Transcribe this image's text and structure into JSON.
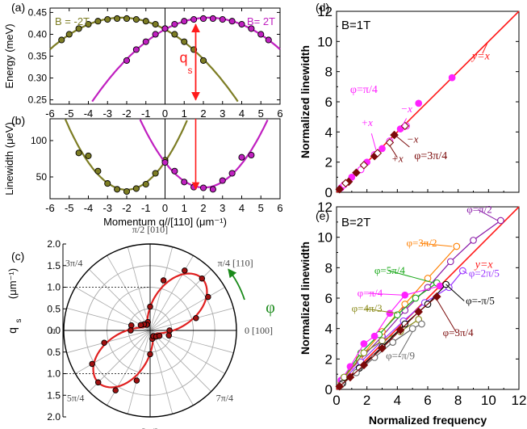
{
  "chart_data": [
    {
      "panel": "(a)",
      "type": "scatter",
      "xlim": [
        -6,
        6
      ],
      "ylim": [
        0.24,
        0.46
      ],
      "xticks": [
        -6,
        -5,
        -4,
        -3,
        -2,
        -1,
        0,
        1,
        2,
        3,
        4,
        5,
        6
      ],
      "yticks": [
        0.25,
        0.3,
        0.35,
        0.4,
        0.45
      ],
      "ytick_labels": [
        "0.25",
        "0.30",
        "0.35",
        "0.40",
        "0.45"
      ],
      "ylabel": "Energy (meV)",
      "annotations": [
        "qs"
      ],
      "series": [
        {
          "name": "B = -2T",
          "color": "#7d7d24",
          "x": [
            -5.4,
            -5,
            -4.5,
            -4,
            -3.5,
            -3,
            -2.5,
            -2,
            -1.5,
            -1,
            -0.5,
            0,
            0.5,
            1.0,
            1.5,
            2.0
          ],
          "y": [
            0.387,
            0.4,
            0.413,
            0.423,
            0.43,
            0.434,
            0.436,
            0.436,
            0.434,
            0.43,
            0.423,
            0.413,
            0.4,
            0.383,
            0.365,
            0.34
          ]
        },
        {
          "name": "B= 2T",
          "color": "#c020c0",
          "x": [
            -2.0,
            -1.5,
            -1.0,
            -0.5,
            0,
            0.5,
            1.0,
            1.5,
            2.0,
            2.5,
            3.0,
            3.5,
            4.0,
            4.5,
            5.0,
            5.4
          ],
          "y": [
            0.34,
            0.365,
            0.383,
            0.4,
            0.413,
            0.423,
            0.43,
            0.434,
            0.436,
            0.436,
            0.434,
            0.43,
            0.423,
            0.413,
            0.4,
            0.387
          ]
        }
      ]
    },
    {
      "panel": "(b)",
      "type": "scatter",
      "xlim": [
        -6,
        6
      ],
      "ylim": [
        20,
        130
      ],
      "xticks": [
        -6,
        -5,
        -4,
        -3,
        -2,
        -1,
        0,
        1,
        2,
        3,
        4,
        5,
        6
      ],
      "yticks": [
        50,
        100
      ],
      "xlabel": "Momentum q//[110] (μm⁻¹)",
      "ylabel": "Linewidth (μeV)",
      "series": [
        {
          "name": "B = -2T",
          "color": "#7d7d24",
          "x": [
            -4.5,
            -4,
            -3.5,
            -3,
            -2.5,
            -2,
            -1.5,
            -1,
            -0.5,
            0
          ],
          "y": [
            83,
            79,
            58,
            41,
            33,
            30,
            34,
            40,
            55,
            73
          ]
        },
        {
          "name": "B= 2T",
          "color": "#c020c0",
          "x": [
            0,
            0.5,
            1.0,
            1.5,
            2.0,
            2.5,
            3.0,
            3.5,
            4.0,
            4.5
          ],
          "y": [
            70,
            58,
            43,
            36,
            35,
            33,
            45,
            55,
            77,
            80
          ]
        }
      ]
    },
    {
      "panel": "(c)",
      "type": "polar",
      "rlim": [
        0,
        2.0
      ],
      "r_tick_labels": [
        "2.0",
        "1.5",
        "1.0",
        "0.5",
        "0.0"
      ],
      "angle_labels": [
        "π/2 [010]",
        "π/4 [110]",
        "0 [100]",
        "7π/4",
        "3π/2",
        "5π/4",
        "π",
        "3π/4"
      ],
      "ylabel": "qs (μm⁻¹)",
      "arrow_label": "φ",
      "series": [
        {
          "name": "data",
          "color": "#a01010",
          "phi_deg": [
            0,
            15,
            30,
            45,
            60,
            75,
            90,
            105,
            120,
            135,
            150,
            165,
            180,
            195,
            210,
            225,
            240,
            255,
            270,
            285,
            300,
            315,
            330,
            345
          ],
          "r": [
            0.45,
            1.1,
            1.55,
            1.7,
            1.6,
            1.2,
            0.55,
            0.2,
            0.15,
            0.2,
            0.25,
            0.45,
            0.45,
            1.1,
            1.55,
            1.7,
            1.6,
            1.2,
            0.55,
            0.2,
            0.15,
            0.2,
            0.25,
            0.45
          ]
        }
      ]
    },
    {
      "panel": "(d)",
      "type": "scatter",
      "xlim": [
        0,
        12
      ],
      "ylim": [
        0,
        12
      ],
      "yticks": [
        0,
        2,
        4,
        6,
        8,
        10,
        12
      ],
      "ylabel": "Normalized linewidth",
      "tag": "B=1T",
      "line_label": "y=x",
      "labels": [
        "φ=π/4",
        "−x",
        "+x",
        "−x",
        "+x",
        "φ=3π/4"
      ],
      "series": [
        {
          "name": "φ=π/4 −x",
          "color": "#ff22ff",
          "filled": true,
          "x": [
            0.3,
            1.0,
            2.0,
            3.0,
            4.2,
            5.4,
            7.6
          ],
          "y": [
            0.3,
            1.0,
            2.0,
            2.9,
            4.2,
            5.9,
            7.6
          ]
        },
        {
          "name": "φ=π/4 +x",
          "color": "#ff22ff",
          "filled": false,
          "x": [
            0.5,
            1.6,
            2.5,
            3.5,
            4.6
          ],
          "y": [
            0.5,
            1.5,
            2.5,
            3.4,
            4.4
          ]
        },
        {
          "name": "φ=3π/4 −x",
          "color": "#7b0a0a",
          "filled": true,
          "x": [
            0.2,
            0.8,
            1.3,
            2.5,
            3.8
          ],
          "y": [
            0.2,
            0.7,
            1.3,
            2.4,
            3.8
          ]
        },
        {
          "name": "φ=3π/4 +x",
          "color": "#7b0a0a",
          "filled": false,
          "x": [
            0.6,
            1.8,
            2.7,
            3.5,
            4.5
          ],
          "y": [
            0.6,
            1.8,
            2.6,
            3.3,
            4.4
          ]
        }
      ]
    },
    {
      "panel": "(e)",
      "type": "scatter",
      "xlim": [
        0,
        12
      ],
      "ylim": [
        0,
        12
      ],
      "xticks": [
        0,
        2,
        4,
        6,
        8,
        10,
        12
      ],
      "yticks": [
        0,
        2,
        4,
        6,
        8,
        10,
        12
      ],
      "xlabel": "Normalized frequency",
      "ylabel": "Normalized linewidth",
      "tag": "B=2T",
      "line_label": "y=x",
      "series": [
        {
          "name": "φ=π/2",
          "color": "#8a1aa8",
          "filled": false,
          "x": [
            0.3,
            1.5,
            3.0,
            4.5,
            6.0,
            7.5,
            9.0,
            10.8
          ],
          "y": [
            0.6,
            1.9,
            3.5,
            5.2,
            6.7,
            8.4,
            9.8,
            11.1
          ]
        },
        {
          "name": "φ=3π/2",
          "color": "#ff7f00",
          "filled": false,
          "x": [
            0.3,
            1.5,
            3.0,
            4.5,
            6.0,
            7.9
          ],
          "y": [
            0.5,
            2.0,
            3.8,
            5.6,
            7.3,
            9.4
          ]
        },
        {
          "name": "φ=5π/4",
          "color": "#1aa81a",
          "filled": false,
          "x": [
            0.5,
            1.6,
            2.8,
            4.0,
            5.2,
            6.6
          ],
          "y": [
            0.8,
            2.4,
            3.6,
            4.9,
            6.0,
            7.0
          ]
        },
        {
          "name": "φ=π/4",
          "color": "#ff22ff",
          "filled": true,
          "x": [
            0.3,
            0.9,
            1.8,
            2.5,
            3.5,
            4.5,
            6.8
          ],
          "y": [
            0.6,
            1.5,
            3.0,
            3.5,
            5.0,
            6.2,
            6.8
          ]
        },
        {
          "name": "φ=2π/5",
          "color": "#9933ff",
          "filled": false,
          "x": [
            0.4,
            1.6,
            3.0,
            4.4,
            5.8,
            7.4,
            8.3
          ],
          "y": [
            0.6,
            1.8,
            3.2,
            4.5,
            5.7,
            6.7,
            7.8
          ]
        },
        {
          "name": "φ=4π/3",
          "color": "#8a8a1a",
          "filled": false,
          "x": [
            0.5,
            1.8,
            3.0,
            4.2,
            5.4
          ],
          "y": [
            0.8,
            2.4,
            3.2,
            3.8,
            4.6
          ]
        },
        {
          "name": "φ=-π/5",
          "color": "#000000",
          "filled": false,
          "x": [
            0.4,
            1.5,
            3.0,
            4.5,
            6.0,
            7.2
          ],
          "y": [
            0.4,
            1.4,
            2.8,
            4.3,
            5.6,
            6.9
          ]
        },
        {
          "name": "φ=-π/9",
          "color": "#666666",
          "filled": false,
          "x": [
            0.3,
            1.3,
            2.5,
            3.7,
            5.0,
            5.6
          ],
          "y": [
            0.3,
            1.1,
            2.1,
            3.1,
            4.0,
            4.3
          ]
        },
        {
          "name": "φ=3π/4",
          "color": "#7b0a0a",
          "filled": true,
          "x": [
            0.2,
            0.9,
            1.8,
            3.0,
            4.2,
            5.4,
            6.6
          ],
          "y": [
            0.2,
            0.8,
            1.6,
            2.7,
            3.9,
            5.1,
            6.1
          ]
        }
      ]
    }
  ],
  "colors": {
    "fit": "#ff1a1a",
    "olive": "#7d7d24",
    "magenta": "#c020c0",
    "polar": "#e02020",
    "green_arrow": "#1a8a1a"
  }
}
